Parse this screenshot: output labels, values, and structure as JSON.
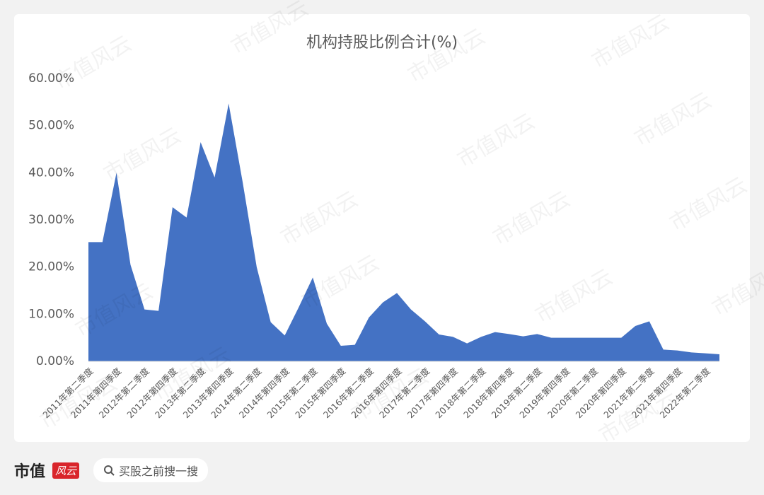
{
  "chart_data": {
    "type": "area",
    "title": "机构持股比例合计(%)",
    "color": "#4472c4",
    "categories": [
      "2011年第二季度",
      null,
      "2011年第四季度",
      null,
      "2012年第二季度",
      null,
      "2012年第四季度",
      null,
      "2013年第二季度",
      null,
      "2013年第四季度",
      null,
      "2014年第二季度",
      null,
      "2014年第四季度",
      null,
      "2015年第二季度",
      null,
      "2015年第四季度",
      null,
      "2016年第二季度",
      null,
      "2016年第四季度",
      null,
      "2017年第二季度",
      null,
      "2017年第四季度",
      null,
      "2018年第二季度",
      null,
      "2018年第四季度",
      null,
      "2019年第二季度",
      null,
      "2019年第四季度",
      null,
      "2020年第二季度",
      null,
      "2020年第四季度",
      null,
      "2021年第二季度",
      null,
      "2021年第四季度",
      null,
      "2022年第二季度",
      null
    ],
    "values": [
      25.3,
      25.3,
      40,
      20.5,
      11,
      10.7,
      32.7,
      30.5,
      46.5,
      39,
      54.7,
      38,
      20,
      8.3,
      5.5,
      11.5,
      17.8,
      8,
      3.3,
      3.5,
      9.3,
      12.5,
      14.5,
      11,
      8.5,
      5.7,
      5.2,
      3.8,
      5.2,
      6.2,
      5.8,
      5.3,
      5.8,
      5,
      5,
      5,
      5,
      5,
      5,
      7.5,
      8.5,
      2.5,
      2.3,
      1.9,
      1.7,
      1.5
    ],
    "ylim": [
      0,
      60
    ],
    "yticks": [
      {
        "value": 0,
        "label": "0.00%"
      },
      {
        "value": 10,
        "label": "10.00%"
      },
      {
        "value": 20,
        "label": "20.00%"
      },
      {
        "value": 30,
        "label": "30.00%"
      },
      {
        "value": 40,
        "label": "40.00%"
      },
      {
        "value": 50,
        "label": "50.00%"
      },
      {
        "value": 60,
        "label": "60.00%"
      }
    ],
    "grid": false
  },
  "watermark": "市值风云",
  "footer": {
    "brand": "市值",
    "brand_script": "风云",
    "search": "买股之前搜一搜"
  }
}
